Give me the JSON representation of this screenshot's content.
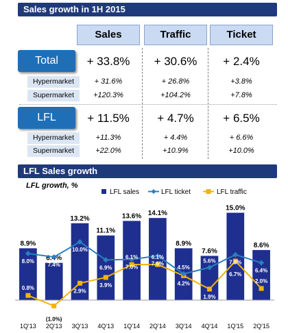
{
  "table_section": {
    "title": "Sales growth in 1H 2015",
    "columns": [
      "Sales",
      "Traffic",
      "Ticket"
    ],
    "rows": [
      {
        "label": "Total",
        "values": [
          "+ 33.8%",
          "+ 30.6%",
          "+ 2.4%"
        ],
        "subrows": [
          {
            "label": "Hypermarket",
            "values": [
              "+  31.6%",
              "+  26.8%",
              "+3.8%"
            ]
          },
          {
            "label": "Supermarket",
            "values": [
              "+120.3%",
              "+104.2%",
              "+7.8%"
            ]
          }
        ]
      },
      {
        "label": "LFL",
        "values": [
          "+ 11.5%",
          "+ 4.7%",
          "+ 6.5%"
        ],
        "subrows": [
          {
            "label": "Hypermarket",
            "values": [
              "+11.3%",
              "+  4.4%",
              "+  6.6%"
            ]
          },
          {
            "label": "Supermarket",
            "values": [
              "+22.0%",
              "+10.9%",
              "+10.0%"
            ]
          }
        ]
      }
    ]
  },
  "chart_section": {
    "title": "LFL Sales growth"
  },
  "colors": {
    "band": "#1f3a7a",
    "bars": "#1f2f8f",
    "ticket_line": "#2a7fbf",
    "traffic_line": "#f2b40a"
  },
  "chart_data": {
    "type": "bar",
    "title": "LFL growth, %",
    "categories": [
      "1Q'13",
      "2Q'13",
      "3Q'13",
      "4Q'13",
      "1Q'14",
      "2Q'14",
      "3Q'14",
      "4Q'14",
      "1Q'15",
      "2Q'15"
    ],
    "series": [
      {
        "name": "LFL sales",
        "type": "bar",
        "values": [
          8.9,
          6.4,
          13.2,
          11.1,
          13.6,
          14.1,
          8.9,
          7.6,
          15.0,
          8.6
        ],
        "labels": [
          "8.9%",
          "6.4%",
          "13.2%",
          "11.1%",
          "13.6%",
          "14.1%",
          "8.9%",
          "7.6%",
          "15.0%",
          "8.6%"
        ]
      },
      {
        "name": "LFL ticket",
        "type": "line",
        "values": [
          8.0,
          7.4,
          10.0,
          6.9,
          7.0,
          7.6,
          4.5,
          5.6,
          7.8,
          6.4
        ],
        "labels": [
          "8.0%",
          "7.4%",
          "10.0%",
          "6.9%",
          "7.0%",
          "7.6%",
          "4.5%",
          "5.6%",
          "7.8%",
          "6.4%"
        ]
      },
      {
        "name": "LFL traffic",
        "type": "line",
        "values": [
          0.8,
          -1.0,
          2.9,
          3.9,
          6.1,
          6.1,
          4.2,
          1.9,
          6.7,
          2.0
        ],
        "labels": [
          "0.8%",
          "(1.0%)",
          "2.9%",
          "3.9%",
          "6.1%",
          "6.1%",
          "4.2%",
          "1.9%",
          "6.7%",
          "2.0%"
        ]
      }
    ],
    "legend_position": "top"
  }
}
